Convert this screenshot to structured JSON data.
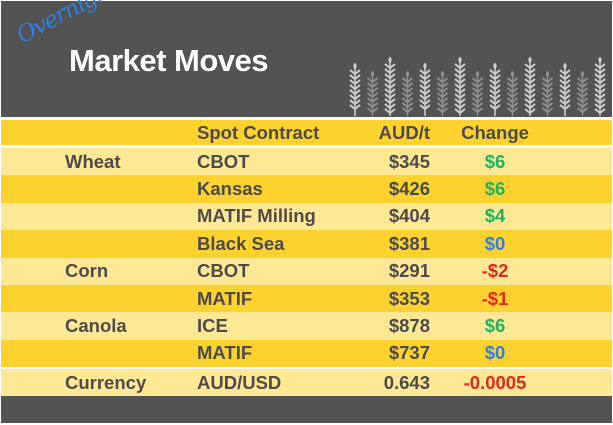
{
  "header": {
    "overline": "Overnight",
    "title": "Market Moves",
    "icon": "wheat-stalks"
  },
  "colors": {
    "positive": "#1db360",
    "neutral": "#2f7fe6",
    "negative": "#e3281e",
    "band_dark": "#fed22e",
    "band_light": "#fee894",
    "background": "#535353"
  },
  "columns": [
    "",
    "Spot Contract",
    "AUD/t",
    "Change"
  ],
  "rows": [
    {
      "commodity": "Wheat",
      "contract": "CBOT",
      "price": "$345",
      "change": "$6",
      "dir": "positive"
    },
    {
      "commodity": "",
      "contract": "Kansas",
      "price": "$426",
      "change": "$6",
      "dir": "positive"
    },
    {
      "commodity": "",
      "contract": "MATIF Milling",
      "price": "$404",
      "change": "$4",
      "dir": "positive"
    },
    {
      "commodity": "",
      "contract": "Black Sea",
      "price": "$381",
      "change": "$0",
      "dir": "neutral"
    },
    {
      "commodity": "Corn",
      "contract": "CBOT",
      "price": "$291",
      "change": "-$2",
      "dir": "negative"
    },
    {
      "commodity": "",
      "contract": "MATIF",
      "price": "$353",
      "change": "-$1",
      "dir": "negative"
    },
    {
      "commodity": "Canola",
      "contract": "ICE",
      "price": "$878",
      "change": "$6",
      "dir": "positive"
    },
    {
      "commodity": "",
      "contract": "MATIF",
      "price": "$737",
      "change": "$0",
      "dir": "neutral"
    }
  ],
  "currency": {
    "commodity": "Currency",
    "contract": "AUD/USD",
    "price": "0.643",
    "change": "-0.0005",
    "dir": "negative"
  }
}
